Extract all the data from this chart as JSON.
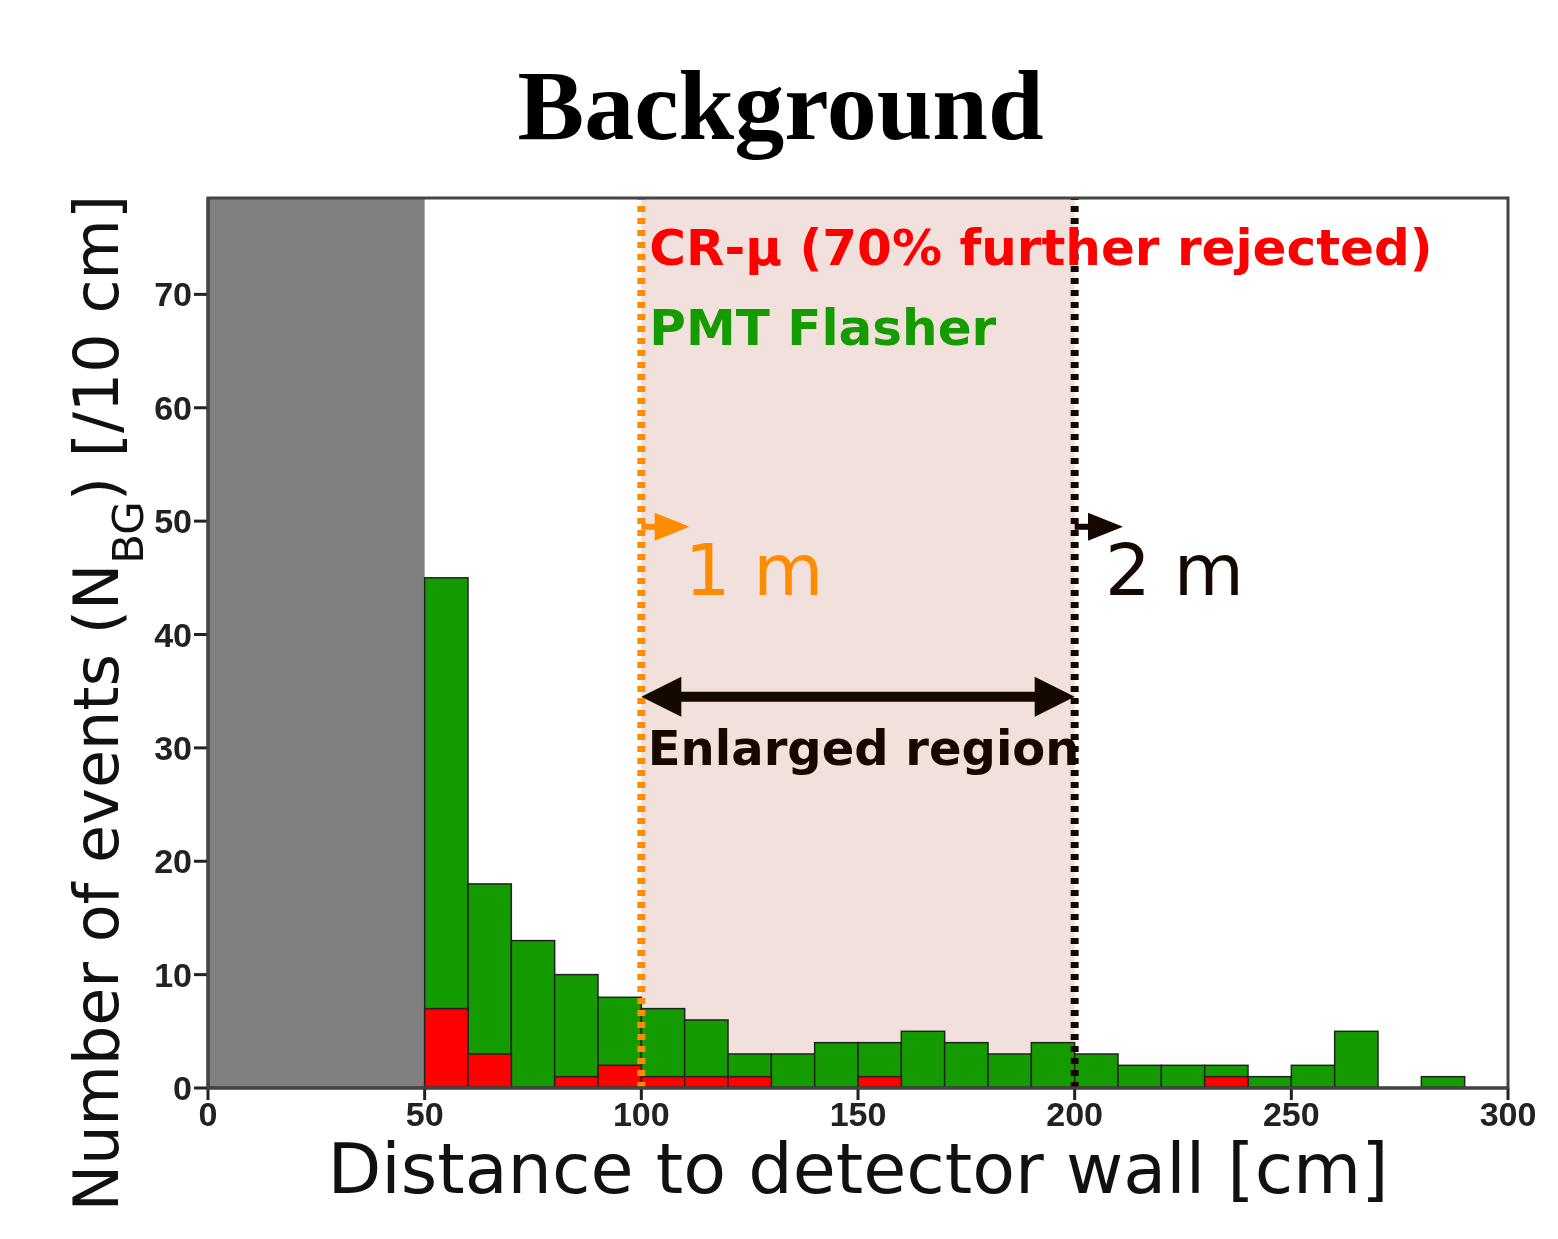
{
  "chart_data": {
    "type": "histogram",
    "title": "Background",
    "xlabel": "Distance to detector wall [cm]",
    "ylabel": "Number of events (N$_{BG}$) [/10 cm]",
    "bins": [
      0,
      10,
      20,
      30,
      40,
      50,
      60,
      70,
      80,
      90,
      100,
      110,
      120,
      130,
      140,
      150,
      160,
      170,
      180,
      190,
      200,
      210,
      220,
      230,
      240,
      250,
      260,
      270,
      280,
      290,
      300
    ],
    "series": [
      {
        "name": "PMT Flasher",
        "color": "#149b00",
        "values": [
          null,
          null,
          null,
          null,
          null,
          45,
          18,
          13,
          10,
          8,
          7,
          6,
          3,
          3,
          4,
          4,
          5,
          4,
          3,
          4,
          3,
          2,
          2,
          2,
          1,
          2,
          5,
          0,
          1,
          0
        ]
      },
      {
        "name": "CR-μ (70% further rejected)",
        "color": "#ff0000",
        "values": [
          null,
          null,
          null,
          null,
          null,
          7,
          3,
          0,
          1,
          2,
          1,
          1,
          1,
          0,
          0,
          1,
          0,
          0,
          0,
          0,
          0,
          0,
          0,
          1,
          0,
          0,
          0,
          0,
          0,
          0
        ]
      }
    ],
    "xlim": [
      0,
      300
    ],
    "xticks": [
      0,
      50,
      100,
      150,
      200,
      250,
      300
    ],
    "ylim": [
      0,
      78.5
    ],
    "yticks": [
      0,
      10,
      20,
      30,
      40,
      50,
      60,
      70
    ],
    "bands": [
      {
        "axis": "x",
        "from": 0,
        "to": 50,
        "color": "#808080"
      },
      {
        "axis": "x",
        "from": 100,
        "to": 200,
        "color": "#eedbd6"
      }
    ],
    "ref_lines": [
      {
        "axis": "x",
        "value": 100,
        "color": "#ff8c00",
        "line_style": "dotted"
      },
      {
        "axis": "x",
        "value": 200,
        "color": "#140800",
        "line_style": "dotted"
      }
    ],
    "annotations": [
      "1 m",
      "2 m",
      "Enlarged region"
    ],
    "legend": "top"
  }
}
